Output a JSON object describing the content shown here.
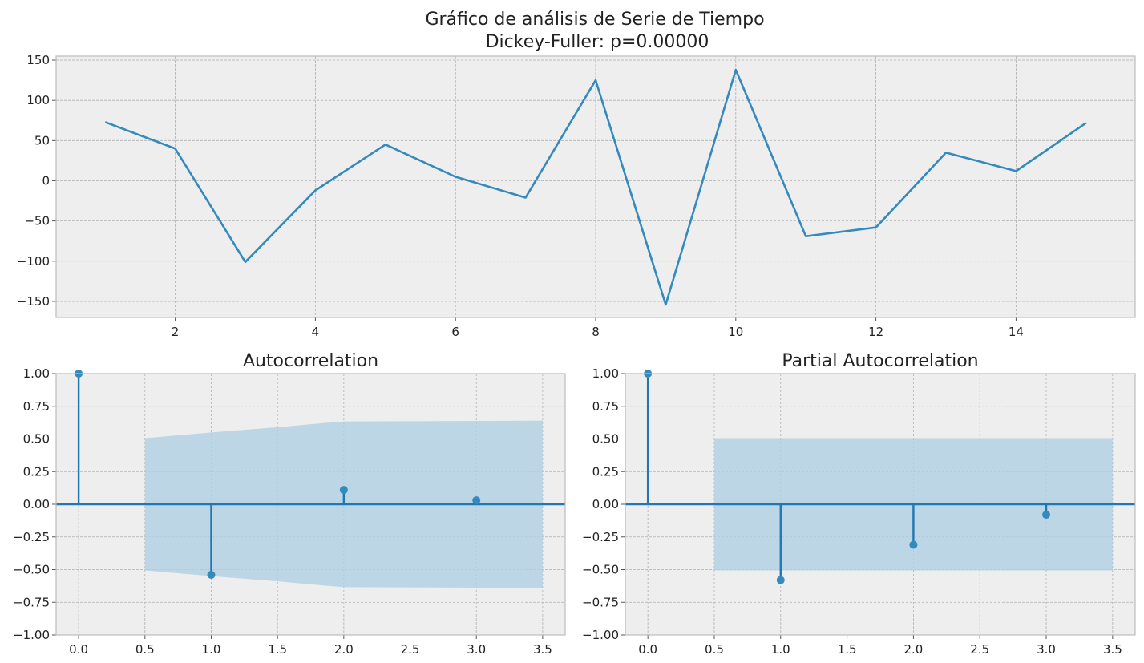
{
  "figure": {
    "title_line1": "Gráfico de análisis de Serie de Tiempo",
    "title_line2": "Dickey-Fuller: p=0.00000"
  },
  "colors": {
    "series": "#348abd",
    "stem": "#1f77b4",
    "band": "#b0cfe2",
    "axes_bg": "#eeeeee",
    "grid": "#b0b0b0",
    "spine": "#bcbcbc"
  },
  "chart_data": [
    {
      "type": "line",
      "title": "",
      "x": [
        1,
        2,
        3,
        4,
        5,
        6,
        7,
        8,
        9,
        10,
        11,
        12,
        13,
        14,
        15
      ],
      "series": [
        {
          "values": [
            73,
            40,
            -101,
            -12,
            45,
            5,
            -21,
            125,
            -154,
            138,
            -69,
            -58,
            35,
            12,
            72
          ]
        }
      ],
      "xlim": [
        0.3,
        15.7
      ],
      "ylim": [
        -170,
        155
      ],
      "xticks": [
        2,
        4,
        6,
        8,
        10,
        12,
        14
      ],
      "yticks": [
        -150,
        -100,
        -50,
        0,
        50,
        100,
        150
      ],
      "grid": true
    },
    {
      "type": "stem",
      "title": "Autocorrelation",
      "lags": [
        0,
        1,
        2,
        3
      ],
      "values": [
        1.0,
        -0.54,
        0.11,
        0.03
      ],
      "confidence_band": {
        "x": [
          0.5,
          1.0,
          1.5,
          2.0,
          2.5,
          3.0,
          3.5
        ],
        "upper": [
          0.506,
          0.55,
          0.59,
          0.634,
          0.636,
          0.638,
          0.64
        ],
        "lower": [
          -0.506,
          -0.55,
          -0.59,
          -0.634,
          -0.636,
          -0.638,
          -0.64
        ]
      },
      "xlim": [
        -0.17,
        3.67
      ],
      "ylim": [
        -1.0,
        1.0
      ],
      "xticks": [
        0.0,
        0.5,
        1.0,
        1.5,
        2.0,
        2.5,
        3.0,
        3.5
      ],
      "yticks": [
        -1.0,
        -0.75,
        -0.5,
        -0.25,
        0.0,
        0.25,
        0.5,
        0.75,
        1.0
      ],
      "grid": true
    },
    {
      "type": "stem",
      "title": "Partial Autocorrelation",
      "lags": [
        0,
        1,
        2,
        3
      ],
      "values": [
        1.0,
        -0.58,
        -0.31,
        -0.08
      ],
      "confidence_band": {
        "x": [
          0.5,
          3.5
        ],
        "upper": [
          0.506,
          0.506
        ],
        "lower": [
          -0.506,
          -0.506
        ]
      },
      "xlim": [
        -0.17,
        3.67
      ],
      "ylim": [
        -1.0,
        1.0
      ],
      "xticks": [
        0.0,
        0.5,
        1.0,
        1.5,
        2.0,
        2.5,
        3.0,
        3.5
      ],
      "yticks": [
        -1.0,
        -0.75,
        -0.5,
        -0.25,
        0.0,
        0.25,
        0.5,
        0.75,
        1.0
      ],
      "grid": true
    }
  ]
}
